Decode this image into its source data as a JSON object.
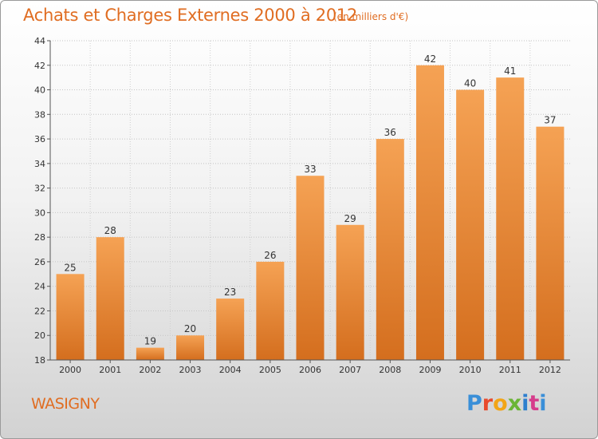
{
  "header": {
    "title": "Achats et Charges Externes 2000 à 2012",
    "unit": "(en milliers d'€)"
  },
  "footer": {
    "commune": "WASIGNY",
    "logo_text": "Proxiti"
  },
  "colors": {
    "accent": "#e06d22",
    "bar_top": "#f5a254",
    "bar_bottom": "#d46e1e"
  },
  "chart_data": {
    "type": "bar",
    "title": "Achats et Charges Externes 2000 à 2012",
    "subtitle": "(en milliers d'€)",
    "categories": [
      "2000",
      "2001",
      "2002",
      "2003",
      "2004",
      "2005",
      "2006",
      "2007",
      "2008",
      "2009",
      "2010",
      "2011",
      "2012"
    ],
    "values": [
      25,
      28,
      19,
      20,
      23,
      26,
      33,
      29,
      36,
      42,
      40,
      41,
      37
    ],
    "data_labels": [
      "25",
      "28",
      "19",
      "20",
      "23",
      "26",
      "33",
      "29",
      "36",
      "42",
      "40",
      "41",
      "37"
    ],
    "ylim": [
      18,
      44
    ],
    "yticks": [
      18,
      20,
      22,
      24,
      26,
      28,
      30,
      32,
      34,
      36,
      38,
      40,
      42,
      44
    ],
    "grid": true,
    "xlabel": "",
    "ylabel": ""
  }
}
